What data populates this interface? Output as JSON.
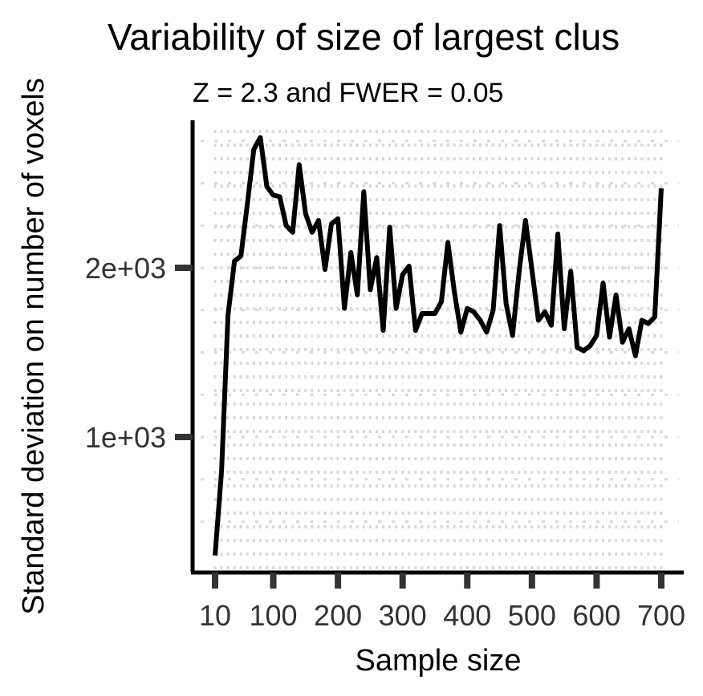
{
  "chart_data": {
    "type": "line",
    "title": "Variability of size of largest clus",
    "subtitle": "Z = 2.3 and FWER = 0.05",
    "xlabel": "Sample size",
    "ylabel": "Standard deviation on number of voxels",
    "x_ticks": [
      10,
      100,
      200,
      300,
      400,
      500,
      600,
      700
    ],
    "y_ticks": [
      1000,
      2000
    ],
    "y_tick_labels": [
      "1e+03",
      "2e+03"
    ],
    "grid": true,
    "series": [
      {
        "color": "#000000",
        "x": [
          10,
          20,
          30,
          40,
          50,
          60,
          70,
          80,
          90,
          100,
          110,
          120,
          130,
          140,
          150,
          160,
          170,
          180,
          190,
          200,
          210,
          220,
          230,
          240,
          250,
          260,
          270,
          280,
          290,
          300,
          310,
          320,
          330,
          340,
          350,
          360,
          370,
          380,
          390,
          400,
          410,
          420,
          430,
          440,
          450,
          460,
          470,
          480,
          490,
          500,
          510,
          520,
          530,
          540,
          550,
          560,
          570,
          580,
          590,
          600,
          610,
          620,
          630,
          640,
          650,
          660,
          670,
          680,
          690,
          700
        ],
        "y": [
          300,
          800,
          1720,
          2040,
          2070,
          2380,
          2700,
          2770,
          2480,
          2430,
          2420,
          2250,
          2210,
          2610,
          2320,
          2210,
          2280,
          1990,
          2260,
          2290,
          1760,
          2090,
          1840,
          2450,
          1870,
          2060,
          1630,
          2240,
          1760,
          1960,
          2010,
          1630,
          1730,
          1730,
          1730,
          1800,
          2150,
          1860,
          1620,
          1760,
          1740,
          1690,
          1620,
          1750,
          2250,
          1790,
          1600,
          1970,
          2280,
          1990,
          1690,
          1740,
          1660,
          2200,
          1640,
          1980,
          1530,
          1510,
          1540,
          1600,
          1910,
          1590,
          1840,
          1560,
          1640,
          1480,
          1690,
          1670,
          1710,
          2470
        ]
      }
    ]
  }
}
